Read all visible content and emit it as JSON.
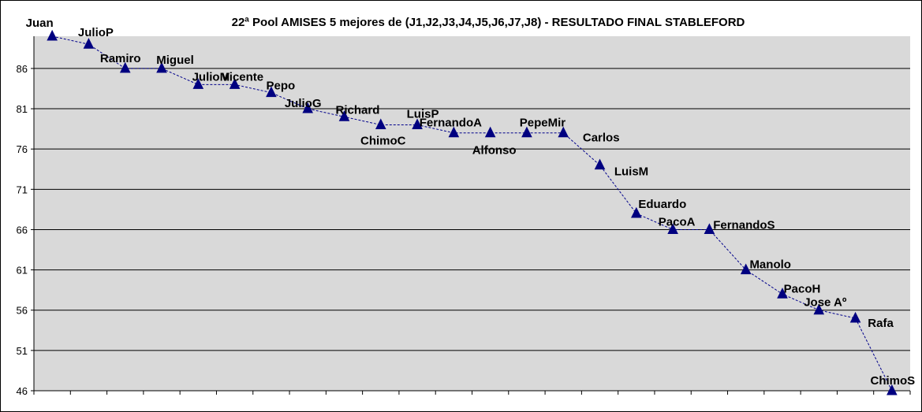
{
  "colors": {
    "plot_background": "#d9d9d9",
    "gridline": "#000000",
    "series": "#00008b",
    "marker": "#000080"
  },
  "chart_data": {
    "type": "line",
    "title": "22ª Pool AMISES 5 mejores de (J1,J2,J3,J4,J5,J6,J7,J8) - RESULTADO FINAL STABLEFORD",
    "xlabel": "",
    "ylabel": "",
    "ylim": [
      46,
      90
    ],
    "yticks": [
      46,
      51,
      56,
      61,
      66,
      71,
      76,
      81,
      86
    ],
    "grid": true,
    "legend": false,
    "line_style": "dashed",
    "marker": "triangle",
    "points": [
      {
        "label": "Juan",
        "value": 90
      },
      {
        "label": "JulioP",
        "value": 89
      },
      {
        "label": "Ramiro",
        "value": 86
      },
      {
        "label": "Miguel",
        "value": 86
      },
      {
        "label": "JulioM",
        "value": 84
      },
      {
        "label": "Vicente",
        "value": 84
      },
      {
        "label": "Pepo",
        "value": 83
      },
      {
        "label": "JulioG",
        "value": 81
      },
      {
        "label": "Richard",
        "value": 80
      },
      {
        "label": "ChimoC",
        "value": 79
      },
      {
        "label": "LuisP",
        "value": 79
      },
      {
        "label": "FernandoA",
        "value": 78
      },
      {
        "label": "Alfonso",
        "value": 78
      },
      {
        "label": "PepeMir",
        "value": 78
      },
      {
        "label": "Carlos",
        "value": 78
      },
      {
        "label": "LuisM",
        "value": 74
      },
      {
        "label": "Eduardo",
        "value": 68
      },
      {
        "label": "PacoA",
        "value": 66
      },
      {
        "label": "FernandoS",
        "value": 66
      },
      {
        "label": "Manolo",
        "value": 61
      },
      {
        "label": "PacoH",
        "value": 58
      },
      {
        "label": "Jose Aº",
        "value": 56
      },
      {
        "label": "Rafa",
        "value": 55
      },
      {
        "label": "ChimoS",
        "value": 46
      }
    ]
  }
}
